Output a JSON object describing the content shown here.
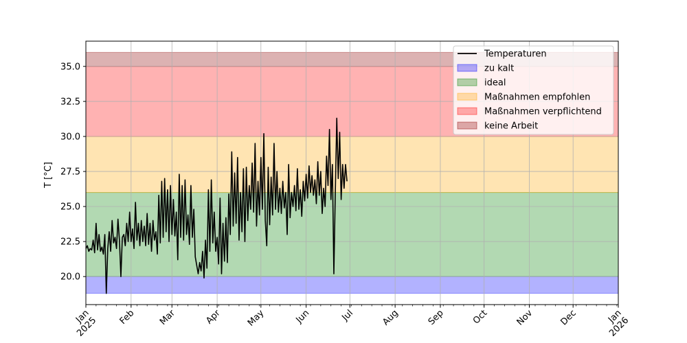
{
  "chart_data": {
    "type": "line",
    "title": "",
    "xlabel": "",
    "ylabel": "T [°C]",
    "xlim": [
      "2025-01-01",
      "2026-01-01"
    ],
    "ylim": [
      18.0,
      36.8
    ],
    "grid": true,
    "legend_position": "top-right",
    "y_ticks": [
      20.0,
      22.5,
      25.0,
      27.5,
      30.0,
      32.5,
      35.0
    ],
    "y_tick_labels": [
      "20.0",
      "22.5",
      "25.0",
      "27.5",
      "30.0",
      "32.5",
      "35.0"
    ],
    "x_ticks": [
      {
        "date": "2025-01-01",
        "label": [
          "Jan",
          "2025"
        ]
      },
      {
        "date": "2025-02-01",
        "label": [
          "Feb"
        ]
      },
      {
        "date": "2025-03-01",
        "label": [
          "Mar"
        ]
      },
      {
        "date": "2025-04-01",
        "label": [
          "Apr"
        ]
      },
      {
        "date": "2025-05-01",
        "label": [
          "May"
        ]
      },
      {
        "date": "2025-06-01",
        "label": [
          "Jun"
        ]
      },
      {
        "date": "2025-07-01",
        "label": [
          "Jul"
        ]
      },
      {
        "date": "2025-08-01",
        "label": [
          "Aug"
        ]
      },
      {
        "date": "2025-09-01",
        "label": [
          "Sep"
        ]
      },
      {
        "date": "2025-10-01",
        "label": [
          "Oct"
        ]
      },
      {
        "date": "2025-11-01",
        "label": [
          "Nov"
        ]
      },
      {
        "date": "2025-12-01",
        "label": [
          "Dec"
        ]
      },
      {
        "date": "2026-01-01",
        "label": [
          "Jan",
          "2026"
        ]
      }
    ],
    "bands": [
      {
        "name": "zu kalt",
        "y0": 18.8,
        "y1": 20.0,
        "color": "#0000ff",
        "alpha": 0.3
      },
      {
        "name": "ideal",
        "y0": 20.0,
        "y1": 26.0,
        "color": "#008000",
        "alpha": 0.3
      },
      {
        "name": "Maßnahmen empfohlen",
        "y0": 26.0,
        "y1": 30.0,
        "color": "#ffa500",
        "alpha": 0.3
      },
      {
        "name": "Maßnahmen verpflichtend",
        "y0": 30.0,
        "y1": 35.0,
        "color": "#ff0000",
        "alpha": 0.3
      },
      {
        "name": "keine Arbeit",
        "y0": 35.0,
        "y1": 36.0,
        "color": "#8b0000",
        "alpha": 0.3
      }
    ],
    "series": [
      {
        "name": "Temperaturen",
        "color": "#000000",
        "points": [
          [
            "2025-01-01",
            22.0
          ],
          [
            "2025-01-02",
            22.2
          ],
          [
            "2025-01-03",
            21.8
          ],
          [
            "2025-01-04",
            22.0
          ],
          [
            "2025-01-05",
            21.9
          ],
          [
            "2025-01-06",
            22.6
          ],
          [
            "2025-01-07",
            21.7
          ],
          [
            "2025-01-08",
            23.8
          ],
          [
            "2025-01-09",
            21.9
          ],
          [
            "2025-01-10",
            23.0
          ],
          [
            "2025-01-11",
            21.8
          ],
          [
            "2025-01-12",
            22.1
          ],
          [
            "2025-01-13",
            21.6
          ],
          [
            "2025-01-14",
            23.0
          ],
          [
            "2025-01-15",
            18.8
          ],
          [
            "2025-01-16",
            22.0
          ],
          [
            "2025-01-17",
            23.2
          ],
          [
            "2025-01-18",
            21.8
          ],
          [
            "2025-01-19",
            24.0
          ],
          [
            "2025-01-20",
            22.4
          ],
          [
            "2025-01-21",
            22.8
          ],
          [
            "2025-01-22",
            22.0
          ],
          [
            "2025-01-23",
            24.1
          ],
          [
            "2025-01-24",
            22.6
          ],
          [
            "2025-01-25",
            20.0
          ],
          [
            "2025-01-26",
            22.8
          ],
          [
            "2025-01-27",
            23.0
          ],
          [
            "2025-01-28",
            22.2
          ],
          [
            "2025-01-29",
            23.8
          ],
          [
            "2025-01-30",
            22.5
          ],
          [
            "2025-01-31",
            24.6
          ],
          [
            "2025-02-01",
            22.5
          ],
          [
            "2025-02-02",
            23.4
          ],
          [
            "2025-02-03",
            22.0
          ],
          [
            "2025-02-04",
            25.3
          ],
          [
            "2025-02-05",
            22.6
          ],
          [
            "2025-02-06",
            23.8
          ],
          [
            "2025-02-07",
            22.2
          ],
          [
            "2025-02-08",
            24.0
          ],
          [
            "2025-02-09",
            22.5
          ],
          [
            "2025-02-10",
            23.6
          ],
          [
            "2025-02-11",
            22.2
          ],
          [
            "2025-02-12",
            24.5
          ],
          [
            "2025-02-13",
            22.3
          ],
          [
            "2025-02-14",
            23.8
          ],
          [
            "2025-02-15",
            21.8
          ],
          [
            "2025-02-16",
            24.0
          ],
          [
            "2025-02-17",
            22.6
          ],
          [
            "2025-02-18",
            23.2
          ],
          [
            "2025-02-19",
            21.6
          ],
          [
            "2025-02-20",
            25.8
          ],
          [
            "2025-02-21",
            22.4
          ],
          [
            "2025-02-22",
            26.8
          ],
          [
            "2025-02-23",
            22.8
          ],
          [
            "2025-02-24",
            27.0
          ],
          [
            "2025-02-25",
            23.2
          ],
          [
            "2025-02-26",
            26.2
          ],
          [
            "2025-02-27",
            22.5
          ],
          [
            "2025-02-28",
            26.5
          ],
          [
            "2025-03-01",
            23.0
          ],
          [
            "2025-03-02",
            25.5
          ],
          [
            "2025-03-03",
            22.9
          ],
          [
            "2025-03-04",
            24.6
          ],
          [
            "2025-03-05",
            21.2
          ],
          [
            "2025-03-06",
            27.3
          ],
          [
            "2025-03-07",
            22.8
          ],
          [
            "2025-03-08",
            26.5
          ],
          [
            "2025-03-09",
            22.6
          ],
          [
            "2025-03-10",
            26.9
          ],
          [
            "2025-03-11",
            23.0
          ],
          [
            "2025-03-12",
            24.4
          ],
          [
            "2025-03-13",
            22.3
          ],
          [
            "2025-03-14",
            26.5
          ],
          [
            "2025-03-15",
            22.8
          ],
          [
            "2025-03-16",
            24.8
          ],
          [
            "2025-03-17",
            21.4
          ],
          [
            "2025-03-18",
            20.8
          ],
          [
            "2025-03-19",
            20.2
          ],
          [
            "2025-03-20",
            21.0
          ],
          [
            "2025-03-21",
            20.4
          ],
          [
            "2025-03-22",
            21.8
          ],
          [
            "2025-03-23",
            19.9
          ],
          [
            "2025-03-24",
            22.6
          ],
          [
            "2025-03-25",
            20.6
          ],
          [
            "2025-03-26",
            26.2
          ],
          [
            "2025-03-27",
            21.8
          ],
          [
            "2025-03-28",
            26.9
          ],
          [
            "2025-03-29",
            22.4
          ],
          [
            "2025-03-30",
            24.6
          ],
          [
            "2025-03-31",
            21.8
          ],
          [
            "2025-04-01",
            22.8
          ],
          [
            "2025-04-02",
            20.9
          ],
          [
            "2025-04-03",
            25.6
          ],
          [
            "2025-04-04",
            20.2
          ],
          [
            "2025-04-05",
            23.8
          ],
          [
            "2025-04-06",
            21.1
          ],
          [
            "2025-04-07",
            24.2
          ],
          [
            "2025-04-08",
            21.0
          ],
          [
            "2025-04-09",
            25.9
          ],
          [
            "2025-04-10",
            23.0
          ],
          [
            "2025-04-11",
            28.9
          ],
          [
            "2025-04-12",
            23.6
          ],
          [
            "2025-04-13",
            27.4
          ],
          [
            "2025-04-14",
            23.8
          ],
          [
            "2025-04-15",
            28.5
          ],
          [
            "2025-04-16",
            22.6
          ],
          [
            "2025-04-17",
            26.0
          ],
          [
            "2025-04-18",
            23.2
          ],
          [
            "2025-04-19",
            27.7
          ],
          [
            "2025-04-20",
            22.5
          ],
          [
            "2025-04-21",
            27.8
          ],
          [
            "2025-04-22",
            24.0
          ],
          [
            "2025-04-23",
            26.5
          ],
          [
            "2025-04-24",
            24.8
          ],
          [
            "2025-04-25",
            28.1
          ],
          [
            "2025-04-26",
            24.6
          ],
          [
            "2025-04-27",
            29.5
          ],
          [
            "2025-04-28",
            23.6
          ],
          [
            "2025-04-29",
            26.8
          ],
          [
            "2025-04-30",
            24.4
          ],
          [
            "2025-05-01",
            28.5
          ],
          [
            "2025-05-02",
            24.8
          ],
          [
            "2025-05-03",
            30.2
          ],
          [
            "2025-05-04",
            24.0
          ],
          [
            "2025-05-05",
            22.2
          ],
          [
            "2025-05-06",
            27.8
          ],
          [
            "2025-05-07",
            23.7
          ],
          [
            "2025-05-08",
            27.1
          ],
          [
            "2025-05-09",
            24.4
          ],
          [
            "2025-05-10",
            29.5
          ],
          [
            "2025-05-11",
            24.8
          ],
          [
            "2025-05-12",
            27.5
          ],
          [
            "2025-05-13",
            24.6
          ],
          [
            "2025-05-14",
            26.3
          ],
          [
            "2025-05-15",
            24.5
          ],
          [
            "2025-05-16",
            26.8
          ],
          [
            "2025-05-17",
            24.9
          ],
          [
            "2025-05-18",
            26.0
          ],
          [
            "2025-05-19",
            23.0
          ],
          [
            "2025-05-20",
            28.0
          ],
          [
            "2025-05-21",
            24.2
          ],
          [
            "2025-05-22",
            26.0
          ],
          [
            "2025-05-23",
            25.0
          ],
          [
            "2025-05-24",
            26.5
          ],
          [
            "2025-05-25",
            24.7
          ],
          [
            "2025-05-26",
            27.7
          ],
          [
            "2025-05-27",
            24.8
          ],
          [
            "2025-05-28",
            26.2
          ],
          [
            "2025-05-29",
            24.3
          ],
          [
            "2025-05-30",
            26.8
          ],
          [
            "2025-05-31",
            25.4
          ],
          [
            "2025-06-01",
            27.3
          ],
          [
            "2025-06-02",
            25.6
          ],
          [
            "2025-06-03",
            27.9
          ],
          [
            "2025-06-04",
            26.0
          ],
          [
            "2025-06-05",
            27.2
          ],
          [
            "2025-06-06",
            25.8
          ],
          [
            "2025-06-07",
            26.9
          ],
          [
            "2025-06-08",
            25.2
          ],
          [
            "2025-06-09",
            28.2
          ],
          [
            "2025-06-10",
            25.8
          ],
          [
            "2025-06-11",
            27.5
          ],
          [
            "2025-06-12",
            24.5
          ],
          [
            "2025-06-13",
            26.3
          ],
          [
            "2025-06-14",
            25.0
          ],
          [
            "2025-06-15",
            28.6
          ],
          [
            "2025-06-16",
            26.5
          ],
          [
            "2025-06-17",
            30.5
          ],
          [
            "2025-06-18",
            25.5
          ],
          [
            "2025-06-19",
            28.0
          ],
          [
            "2025-06-20",
            20.2
          ],
          [
            "2025-06-21",
            26.0
          ],
          [
            "2025-06-22",
            31.3
          ],
          [
            "2025-06-23",
            27.0
          ],
          [
            "2025-06-24",
            30.3
          ],
          [
            "2025-06-25",
            25.5
          ],
          [
            "2025-06-26",
            28.0
          ],
          [
            "2025-06-27",
            26.3
          ],
          [
            "2025-06-28",
            28.0
          ],
          [
            "2025-06-29",
            26.8
          ]
        ]
      }
    ]
  }
}
